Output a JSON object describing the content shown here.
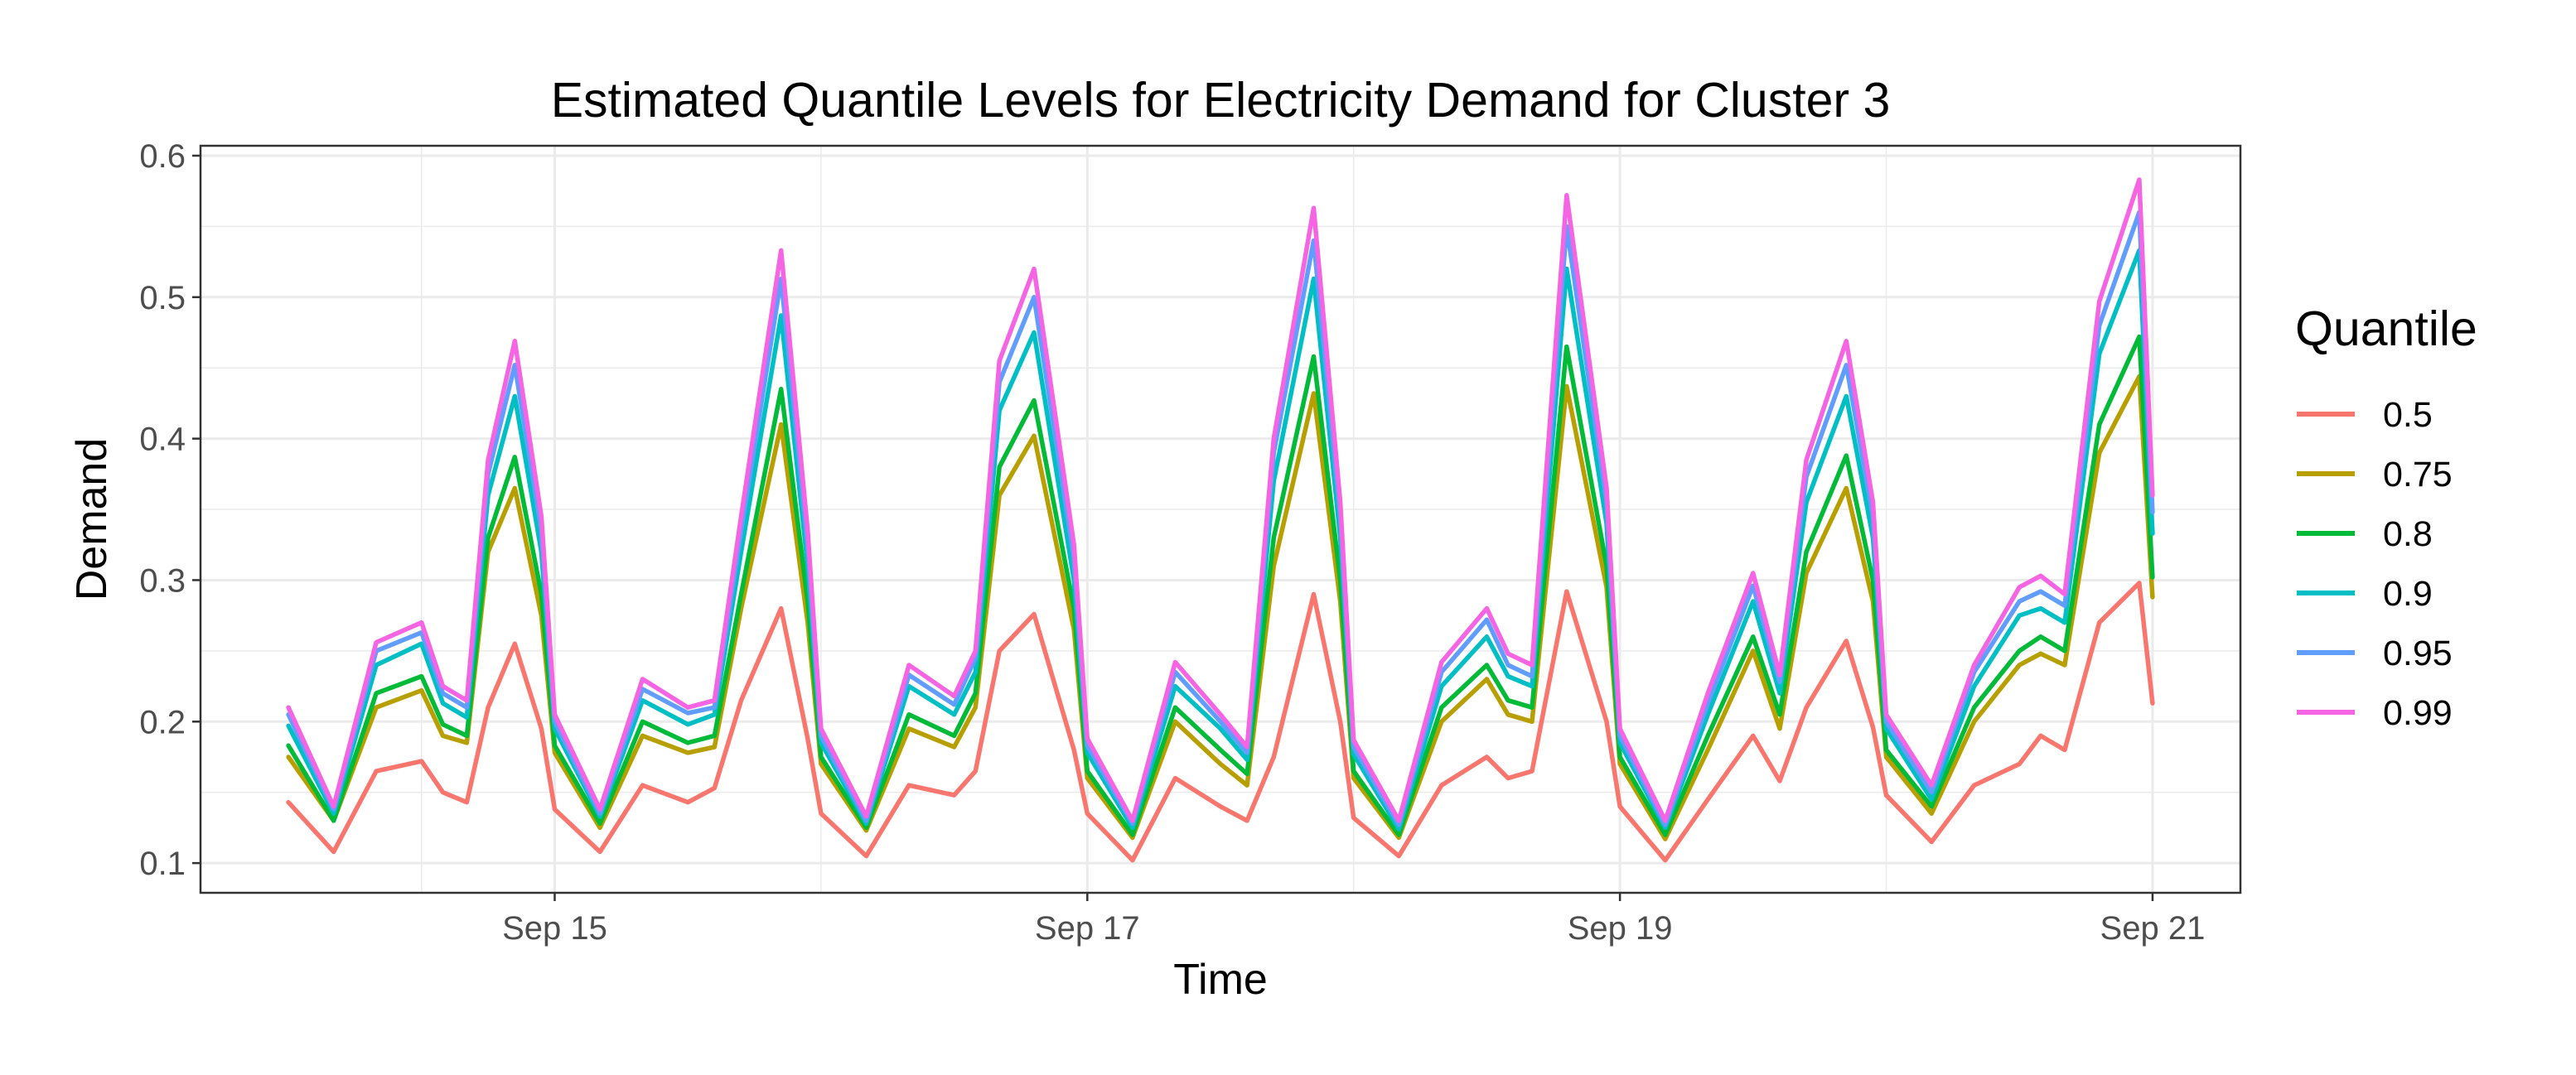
{
  "chart_data": {
    "type": "line",
    "title": "Estimated Quantile Levels for Electricity Demand for Cluster 3",
    "xlabel": "Time",
    "ylabel": "Demand",
    "x_tick_labels": [
      "Sep 15",
      "Sep 17",
      "Sep 19",
      "Sep 21"
    ],
    "x_tick_values": [
      15,
      17,
      19,
      21
    ],
    "xlim": [
      13.67,
      21.33
    ],
    "y_tick_labels": [
      "0.1",
      "0.2",
      "0.3",
      "0.4",
      "0.5",
      "0.6"
    ],
    "y_tick_values": [
      0.1,
      0.2,
      0.3,
      0.4,
      0.5,
      0.6
    ],
    "ylim": [
      0.079,
      0.607
    ],
    "grid": true,
    "legend": {
      "title": "Quantile",
      "position": "right"
    },
    "x": [
      14.0,
      14.17,
      14.33,
      14.5,
      14.58,
      14.67,
      14.75,
      14.85,
      14.95,
      15.0,
      15.17,
      15.33,
      15.5,
      15.6,
      15.7,
      15.85,
      15.95,
      16.0,
      16.17,
      16.33,
      16.5,
      16.58,
      16.67,
      16.8,
      16.95,
      17.0,
      17.17,
      17.33,
      17.5,
      17.6,
      17.7,
      17.85,
      17.95,
      18.0,
      18.17,
      18.33,
      18.5,
      18.58,
      18.67,
      18.8,
      18.95,
      19.0,
      19.17,
      19.33,
      19.5,
      19.6,
      19.7,
      19.85,
      19.95,
      20.0,
      20.17,
      20.33,
      20.5,
      20.58,
      20.67,
      20.8,
      20.95,
      21.0
    ],
    "series": [
      {
        "name": "0.5",
        "color": "#F8766D",
        "values": [
          0.143,
          0.108,
          0.165,
          0.172,
          0.15,
          0.143,
          0.21,
          0.255,
          0.195,
          0.138,
          0.108,
          0.155,
          0.143,
          0.153,
          0.215,
          0.28,
          0.188,
          0.135,
          0.105,
          0.155,
          0.148,
          0.165,
          0.25,
          0.276,
          0.18,
          0.135,
          0.102,
          0.16,
          0.14,
          0.13,
          0.175,
          0.29,
          0.2,
          0.132,
          0.105,
          0.155,
          0.175,
          0.16,
          0.165,
          0.292,
          0.2,
          0.14,
          0.102,
          0.145,
          0.19,
          0.158,
          0.21,
          0.257,
          0.196,
          0.148,
          0.115,
          0.155,
          0.17,
          0.19,
          0.18,
          0.27,
          0.298,
          0.213
        ]
      },
      {
        "name": "0.75",
        "color": "#B79F00",
        "values": [
          0.175,
          0.13,
          0.21,
          0.222,
          0.19,
          0.185,
          0.32,
          0.365,
          0.275,
          0.178,
          0.125,
          0.19,
          0.178,
          0.182,
          0.28,
          0.41,
          0.27,
          0.17,
          0.123,
          0.195,
          0.182,
          0.21,
          0.36,
          0.402,
          0.265,
          0.16,
          0.118,
          0.2,
          0.17,
          0.155,
          0.31,
          0.432,
          0.285,
          0.16,
          0.118,
          0.2,
          0.23,
          0.205,
          0.2,
          0.437,
          0.295,
          0.17,
          0.117,
          0.18,
          0.25,
          0.195,
          0.305,
          0.365,
          0.285,
          0.175,
          0.135,
          0.2,
          0.24,
          0.248,
          0.24,
          0.39,
          0.444,
          0.288
        ]
      },
      {
        "name": "0.8",
        "color": "#00BA38",
        "values": [
          0.183,
          0.13,
          0.22,
          0.232,
          0.198,
          0.19,
          0.33,
          0.387,
          0.29,
          0.183,
          0.128,
          0.2,
          0.185,
          0.19,
          0.29,
          0.435,
          0.285,
          0.175,
          0.125,
          0.205,
          0.19,
          0.22,
          0.38,
          0.427,
          0.28,
          0.165,
          0.12,
          0.21,
          0.18,
          0.163,
          0.33,
          0.458,
          0.3,
          0.165,
          0.12,
          0.21,
          0.24,
          0.215,
          0.21,
          0.465,
          0.31,
          0.175,
          0.12,
          0.19,
          0.26,
          0.205,
          0.32,
          0.388,
          0.3,
          0.18,
          0.14,
          0.21,
          0.25,
          0.26,
          0.25,
          0.41,
          0.472,
          0.302
        ]
      },
      {
        "name": "0.9",
        "color": "#00BFC4",
        "values": [
          0.197,
          0.135,
          0.24,
          0.255,
          0.213,
          0.203,
          0.36,
          0.43,
          0.32,
          0.195,
          0.133,
          0.215,
          0.198,
          0.205,
          0.32,
          0.487,
          0.31,
          0.185,
          0.128,
          0.225,
          0.205,
          0.235,
          0.42,
          0.475,
          0.3,
          0.178,
          0.125,
          0.225,
          0.195,
          0.173,
          0.37,
          0.513,
          0.33,
          0.177,
          0.124,
          0.225,
          0.26,
          0.232,
          0.225,
          0.52,
          0.34,
          0.185,
          0.125,
          0.205,
          0.285,
          0.22,
          0.355,
          0.43,
          0.33,
          0.195,
          0.145,
          0.225,
          0.275,
          0.28,
          0.27,
          0.46,
          0.533,
          0.333
        ]
      },
      {
        "name": "0.95",
        "color": "#619CFF",
        "values": [
          0.205,
          0.138,
          0.25,
          0.263,
          0.22,
          0.21,
          0.375,
          0.452,
          0.335,
          0.2,
          0.135,
          0.223,
          0.206,
          0.21,
          0.335,
          0.513,
          0.325,
          0.19,
          0.13,
          0.233,
          0.212,
          0.245,
          0.44,
          0.5,
          0.315,
          0.183,
          0.128,
          0.235,
          0.2,
          0.178,
          0.39,
          0.54,
          0.345,
          0.182,
          0.127,
          0.235,
          0.272,
          0.24,
          0.232,
          0.55,
          0.355,
          0.19,
          0.127,
          0.213,
          0.296,
          0.228,
          0.373,
          0.452,
          0.345,
          0.2,
          0.15,
          0.235,
          0.285,
          0.292,
          0.282,
          0.48,
          0.56,
          0.348
        ]
      },
      {
        "name": "0.99",
        "color": "#F564E3",
        "values": [
          0.21,
          0.14,
          0.256,
          0.27,
          0.225,
          0.215,
          0.385,
          0.469,
          0.345,
          0.205,
          0.138,
          0.23,
          0.21,
          0.215,
          0.345,
          0.533,
          0.335,
          0.195,
          0.133,
          0.24,
          0.218,
          0.25,
          0.455,
          0.52,
          0.325,
          0.188,
          0.13,
          0.242,
          0.205,
          0.182,
          0.4,
          0.563,
          0.355,
          0.187,
          0.13,
          0.242,
          0.28,
          0.248,
          0.24,
          0.572,
          0.365,
          0.195,
          0.13,
          0.22,
          0.305,
          0.233,
          0.385,
          0.469,
          0.355,
          0.205,
          0.155,
          0.24,
          0.295,
          0.303,
          0.29,
          0.497,
          0.583,
          0.36
        ]
      }
    ]
  }
}
